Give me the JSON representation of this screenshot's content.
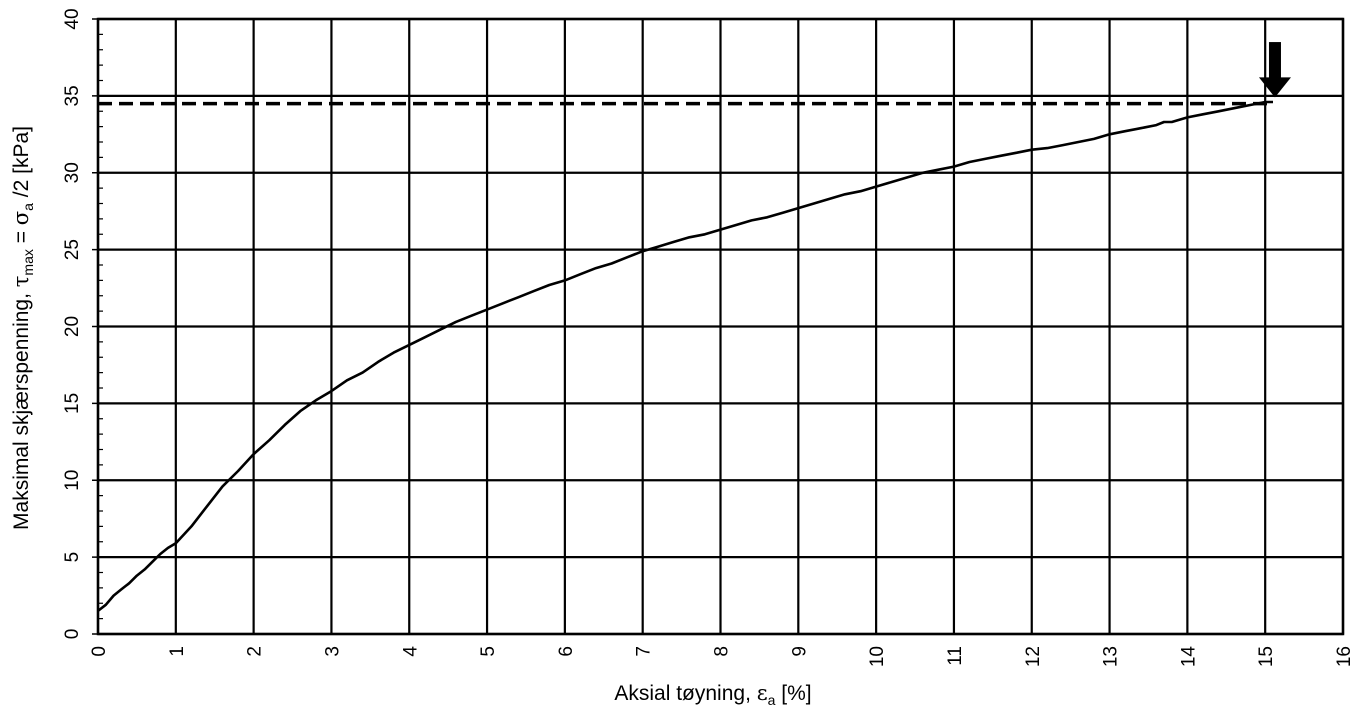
{
  "chart_data": {
    "type": "line",
    "xlabel": {
      "prefix": "Aksial tøyning, ",
      "symbol": "ε",
      "subscript": "a",
      "suffix": " [%]"
    },
    "ylabel": {
      "prefix": "Maksimal skjærspenning, ",
      "tau": "τ",
      "tau_sub": "max",
      "equals": " = ",
      "sigma": "σ",
      "sigma_sub": "a",
      "suffix": " /2  [kPa]"
    },
    "xlim": [
      0,
      16
    ],
    "ylim": [
      0,
      40
    ],
    "x_ticks": [
      0,
      1,
      2,
      3,
      4,
      5,
      6,
      7,
      8,
      9,
      10,
      11,
      12,
      13,
      14,
      15,
      16
    ],
    "y_ticks": [
      0,
      5,
      10,
      15,
      20,
      25,
      30,
      35,
      40
    ],
    "grid": true,
    "series": [
      {
        "color": "#000000",
        "x": [
          0,
          0.1,
          0.2,
          0.3,
          0.4,
          0.5,
          0.6,
          0.7,
          0.8,
          0.9,
          1.0,
          1.2,
          1.4,
          1.6,
          1.8,
          2.0,
          2.2,
          2.4,
          2.6,
          2.8,
          3.0,
          3.2,
          3.4,
          3.6,
          3.8,
          4.0,
          4.2,
          4.4,
          4.6,
          4.8,
          5.0,
          5.2,
          5.4,
          5.6,
          5.8,
          6.0,
          6.2,
          6.4,
          6.6,
          6.8,
          7.0,
          7.2,
          7.4,
          7.6,
          7.8,
          8.0,
          8.2,
          8.4,
          8.6,
          8.8,
          9.0,
          9.2,
          9.4,
          9.6,
          9.8,
          10.0,
          10.2,
          10.4,
          10.6,
          10.8,
          11.0,
          11.2,
          11.4,
          11.6,
          11.8,
          12.0,
          12.2,
          12.4,
          12.6,
          12.8,
          13.0,
          13.2,
          13.4,
          13.6,
          13.7,
          13.8,
          14.0,
          14.2,
          14.4,
          14.6,
          14.8,
          15.0,
          15.1
        ],
        "y": [
          1.5,
          1.9,
          2.5,
          2.9,
          3.3,
          3.8,
          4.2,
          4.7,
          5.2,
          5.6,
          5.9,
          7.0,
          8.3,
          9.6,
          10.6,
          11.7,
          12.6,
          13.6,
          14.5,
          15.2,
          15.8,
          16.5,
          17.0,
          17.7,
          18.3,
          18.8,
          19.3,
          19.8,
          20.3,
          20.7,
          21.1,
          21.5,
          21.9,
          22.3,
          22.7,
          23.0,
          23.4,
          23.8,
          24.1,
          24.5,
          24.9,
          25.2,
          25.5,
          25.8,
          26.0,
          26.3,
          26.6,
          26.9,
          27.1,
          27.4,
          27.7,
          28.0,
          28.3,
          28.6,
          28.8,
          29.1,
          29.4,
          29.7,
          30.0,
          30.2,
          30.4,
          30.7,
          30.9,
          31.1,
          31.3,
          31.5,
          31.6,
          31.8,
          32.0,
          32.2,
          32.5,
          32.7,
          32.9,
          33.1,
          33.3,
          33.3,
          33.6,
          33.8,
          34.0,
          34.2,
          34.4,
          34.6,
          34.6
        ]
      }
    ],
    "reference_line": {
      "y": 34.5,
      "x_end": 15.1,
      "style": "dashed"
    },
    "marker_arrow": {
      "x": 15.1,
      "y_top": 38.5,
      "y_tip": 34.9,
      "direction": "down"
    }
  }
}
